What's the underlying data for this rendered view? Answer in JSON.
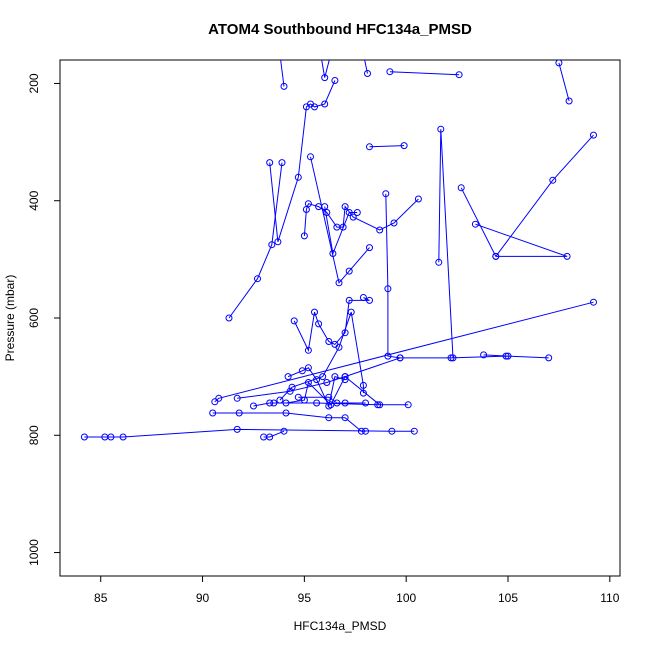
{
  "chart_data": {
    "type": "line",
    "title": "ATOM4 Southbound HFC134a_PMSD",
    "xlabel": "HFC134a_PMSD",
    "ylabel": "Pressure (mbar)",
    "xlim": [
      83,
      110.5
    ],
    "ylim": [
      1040,
      160
    ],
    "x_ticks": [
      85,
      90,
      95,
      100,
      105,
      110
    ],
    "y_ticks": [
      200,
      400,
      600,
      800,
      1000
    ],
    "grid": false,
    "legend": "none",
    "color": "#0000ff",
    "series": [
      {
        "points": [
          {
            "x": 84.2,
            "y": 803
          },
          {
            "x": 85.2,
            "y": 803
          },
          {
            "x": 85.5,
            "y": 803
          },
          {
            "x": 86.1,
            "y": 803
          },
          {
            "x": 91.7,
            "y": 790
          },
          {
            "x": 99.3,
            "y": 793
          },
          {
            "x": 100.4,
            "y": 793
          }
        ]
      },
      {
        "points": [
          {
            "x": 90.5,
            "y": 762
          },
          {
            "x": 91.8,
            "y": 762
          },
          {
            "x": 94.1,
            "y": 762
          },
          {
            "x": 96.2,
            "y": 770
          },
          {
            "x": 97.0,
            "y": 770
          },
          {
            "x": 97.8,
            "y": 793
          },
          {
            "x": 98.0,
            "y": 793
          }
        ]
      },
      {
        "points": [
          {
            "x": 90.6,
            "y": 743
          },
          {
            "x": 90.8,
            "y": 737
          },
          {
            "x": 109.2,
            "y": 573
          }
        ]
      },
      {
        "points": [
          {
            "x": 91.7,
            "y": 737
          },
          {
            "x": 94.3,
            "y": 725
          },
          {
            "x": 96.1,
            "y": 710
          },
          {
            "x": 97.0,
            "y": 700
          },
          {
            "x": 99.7,
            "y": 668
          },
          {
            "x": 102.2,
            "y": 668
          },
          {
            "x": 104.9,
            "y": 665
          },
          {
            "x": 107.0,
            "y": 668
          }
        ]
      },
      {
        "points": [
          {
            "x": 91.3,
            "y": 600
          },
          {
            "x": 92.7,
            "y": 533
          },
          {
            "x": 93.4,
            "y": 475
          },
          {
            "x": 93.9,
            "y": 335
          }
        ]
      },
      {
        "points": [
          {
            "x": 92.5,
            "y": 750
          },
          {
            "x": 93.3,
            "y": 745
          },
          {
            "x": 95.6,
            "y": 745
          },
          {
            "x": 98.6,
            "y": 748
          },
          {
            "x": 100.1,
            "y": 748
          }
        ]
      },
      {
        "points": [
          {
            "x": 93.0,
            "y": 803
          },
          {
            "x": 93.3,
            "y": 803
          },
          {
            "x": 94.0,
            "y": 793
          }
        ]
      },
      {
        "points": [
          {
            "x": 93.3,
            "y": 335
          },
          {
            "x": 93.7,
            "y": 470
          },
          {
            "x": 94.7,
            "y": 360
          },
          {
            "x": 95.1,
            "y": 240
          },
          {
            "x": 95.3,
            "y": 235
          },
          {
            "x": 95.5,
            "y": 240
          },
          {
            "x": 96.0,
            "y": 235
          },
          {
            "x": 96.5,
            "y": 195
          }
        ]
      },
      {
        "points": [
          {
            "x": 94.7,
            "y": 735
          },
          {
            "x": 96.2,
            "y": 735
          },
          {
            "x": 96.6,
            "y": 745
          },
          {
            "x": 97.0,
            "y": 745
          },
          {
            "x": 98.0,
            "y": 745
          }
        ]
      },
      {
        "points": [
          {
            "x": 94.5,
            "y": 605
          },
          {
            "x": 95.2,
            "y": 655
          },
          {
            "x": 95.5,
            "y": 590
          },
          {
            "x": 95.7,
            "y": 610
          },
          {
            "x": 96.2,
            "y": 640
          },
          {
            "x": 96.5,
            "y": 645
          },
          {
            "x": 97.0,
            "y": 625
          },
          {
            "x": 97.2,
            "y": 570
          },
          {
            "x": 98.2,
            "y": 570
          },
          {
            "x": 97.9,
            "y": 565
          }
        ]
      },
      {
        "points": [
          {
            "x": 95.0,
            "y": 460
          },
          {
            "x": 95.1,
            "y": 415
          },
          {
            "x": 95.2,
            "y": 405
          },
          {
            "x": 95.7,
            "y": 410
          },
          {
            "x": 96.1,
            "y": 420
          },
          {
            "x": 96.6,
            "y": 445
          },
          {
            "x": 96.9,
            "y": 445
          },
          {
            "x": 97.0,
            "y": 410
          },
          {
            "x": 97.4,
            "y": 428
          },
          {
            "x": 98.7,
            "y": 450
          },
          {
            "x": 99.4,
            "y": 438
          },
          {
            "x": 100.6,
            "y": 397
          }
        ]
      },
      {
        "points": [
          {
            "x": 95.3,
            "y": 325
          },
          {
            "x": 96.7,
            "y": 540
          },
          {
            "x": 97.2,
            "y": 520
          },
          {
            "x": 98.2,
            "y": 480
          }
        ]
      },
      {
        "points": [
          {
            "x": 99.0,
            "y": 388
          },
          {
            "x": 99.1,
            "y": 550
          },
          {
            "x": 99.1,
            "y": 665
          },
          {
            "x": 99.7,
            "y": 668
          }
        ]
      },
      {
        "points": [
          {
            "x": 99.2,
            "y": 180
          },
          {
            "x": 102.6,
            "y": 185
          }
        ]
      },
      {
        "points": [
          {
            "x": 98.2,
            "y": 308
          },
          {
            "x": 99.9,
            "y": 306
          }
        ]
      },
      {
        "points": [
          {
            "x": 101.6,
            "y": 505
          },
          {
            "x": 101.7,
            "y": 278
          },
          {
            "x": 102.3,
            "y": 668
          }
        ]
      },
      {
        "points": [
          {
            "x": 102.7,
            "y": 378
          },
          {
            "x": 104.4,
            "y": 495
          },
          {
            "x": 107.9,
            "y": 495
          },
          {
            "x": 103.4,
            "y": 440
          }
        ]
      },
      {
        "points": [
          {
            "x": 103.8,
            "y": 663
          },
          {
            "x": 105.0,
            "y": 665
          }
        ]
      },
      {
        "points": [
          {
            "x": 104.4,
            "y": 495
          },
          {
            "x": 107.2,
            "y": 365
          },
          {
            "x": 109.2,
            "y": 288
          }
        ]
      },
      {
        "points": [
          {
            "x": 108.0,
            "y": 230
          },
          {
            "x": 107.5,
            "y": 165
          }
        ]
      },
      {
        "points": [
          {
            "x": 94.2,
            "y": 700
          },
          {
            "x": 94.9,
            "y": 690
          },
          {
            "x": 95.2,
            "y": 685
          },
          {
            "x": 95.6,
            "y": 705
          },
          {
            "x": 96.2,
            "y": 750
          },
          {
            "x": 96.5,
            "y": 700
          },
          {
            "x": 97.0,
            "y": 705
          }
        ]
      },
      {
        "points": [
          {
            "x": 93.5,
            "y": 745
          },
          {
            "x": 94.1,
            "y": 745
          },
          {
            "x": 95.0,
            "y": 740
          },
          {
            "x": 95.2,
            "y": 710
          },
          {
            "x": 96.3,
            "y": 748
          },
          {
            "x": 97.0,
            "y": 700
          },
          {
            "x": 98.7,
            "y": 748
          }
        ]
      },
      {
        "points": [
          {
            "x": 95.8,
            "y": 150
          },
          {
            "x": 96.0,
            "y": 190
          },
          {
            "x": 96.3,
            "y": 150
          }
        ]
      },
      {
        "points": [
          {
            "x": 94.0,
            "y": 205
          },
          {
            "x": 93.8,
            "y": 150
          }
        ]
      },
      {
        "points": [
          {
            "x": 98.1,
            "y": 183
          },
          {
            "x": 97.9,
            "y": 150
          }
        ]
      },
      {
        "points": [
          {
            "x": 96.0,
            "y": 410
          },
          {
            "x": 96.4,
            "y": 490
          },
          {
            "x": 97.2,
            "y": 420
          },
          {
            "x": 97.6,
            "y": 420
          }
        ]
      },
      {
        "points": [
          {
            "x": 93.8,
            "y": 740
          },
          {
            "x": 94.4,
            "y": 718
          },
          {
            "x": 95.9,
            "y": 700
          },
          {
            "x": 96.7,
            "y": 650
          },
          {
            "x": 97.3,
            "y": 590
          },
          {
            "x": 97.9,
            "y": 715
          },
          {
            "x": 97.9,
            "y": 728
          }
        ]
      }
    ]
  }
}
